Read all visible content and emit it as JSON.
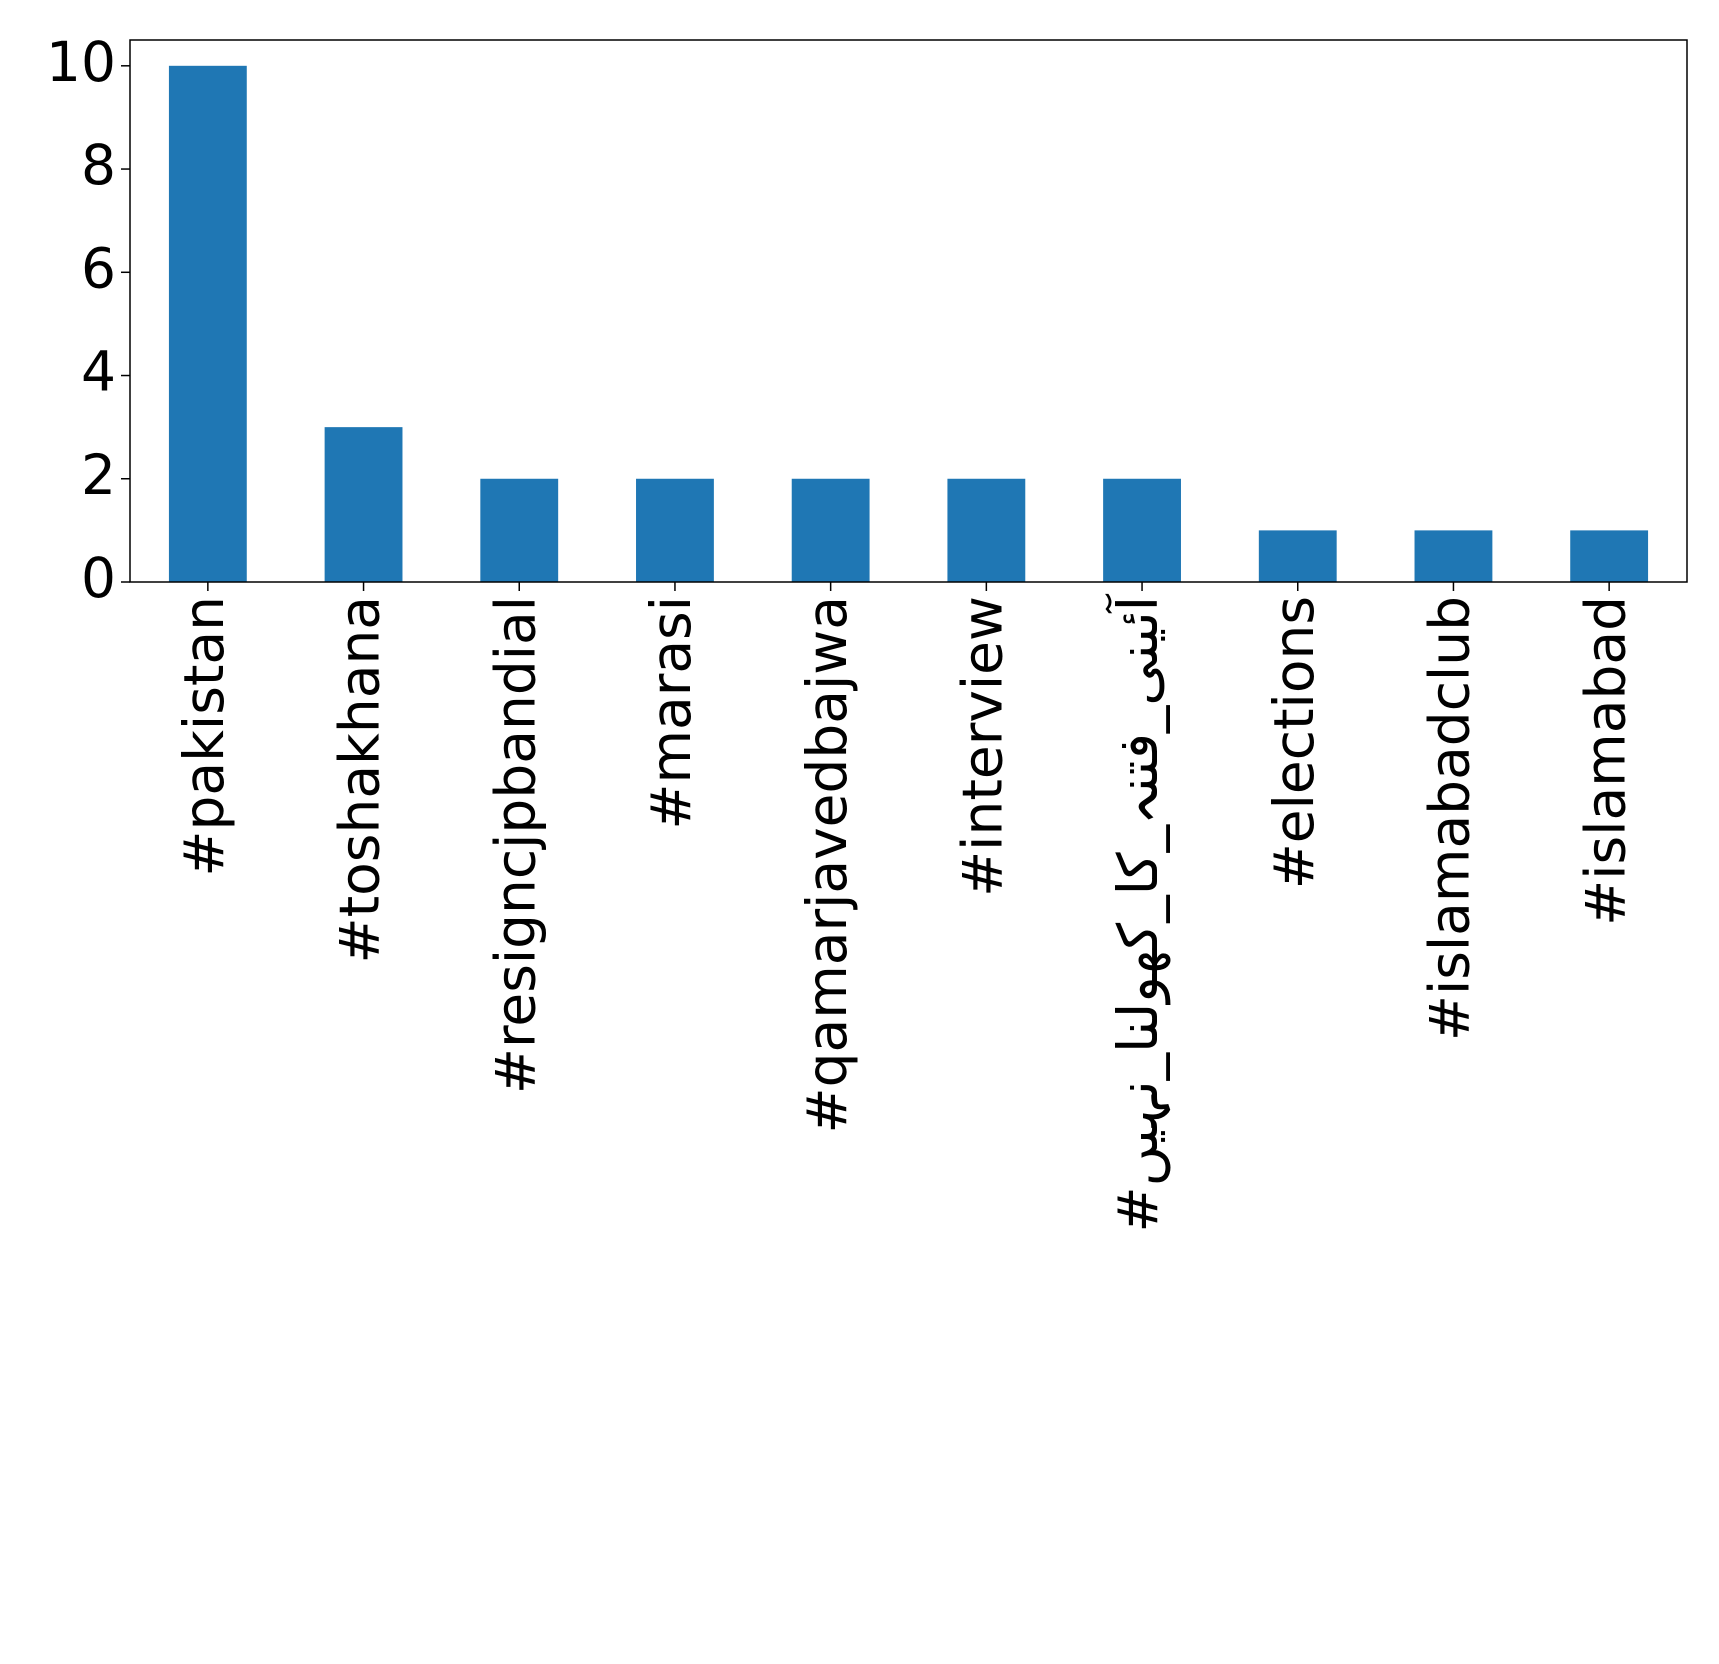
{
  "chart_data": {
    "type": "bar",
    "categories": [
      "#pakistan",
      "#toshakhana",
      "#resigncjpbandial",
      "#marasi",
      "#qamarjavedbajwa",
      "#interview",
      "#آئینی_فتنہ_کا_کھولنا_نہیں",
      "#elections",
      "#islamabadclub",
      "#islamabad"
    ],
    "values": [
      10,
      3,
      2,
      2,
      2,
      2,
      2,
      1,
      1,
      1
    ],
    "color": "#1f77b4",
    "ylim": [
      0,
      10.5
    ],
    "yticks": [
      0,
      2,
      4,
      6,
      8,
      10
    ],
    "grid": false
  }
}
